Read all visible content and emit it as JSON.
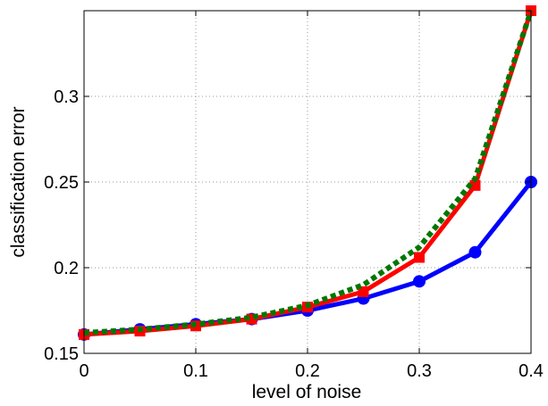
{
  "chart_data": {
    "type": "line",
    "title": "",
    "xlabel": "level of noise",
    "ylabel": "classification error",
    "xlim": [
      0,
      0.4
    ],
    "ylim": [
      0.15,
      0.35
    ],
    "xticks": [
      0,
      0.1,
      0.2,
      0.3,
      0.4
    ],
    "xtick_labels": [
      "0",
      "0.1",
      "0.2",
      "0.3",
      "0.4"
    ],
    "yticks": [
      0.15,
      0.2,
      0.25,
      0.3
    ],
    "ytick_labels": [
      "0.15",
      "0.2",
      "0.25",
      "0.3"
    ],
    "grid": true,
    "legend": "none",
    "x": [
      0,
      0.05,
      0.1,
      0.15,
      0.2,
      0.25,
      0.3,
      0.35,
      0.4
    ],
    "series": [
      {
        "color": "#0000ff",
        "line_style": "solid",
        "marker": "circle",
        "values": [
          0.161,
          0.164,
          0.167,
          0.17,
          0.175,
          0.182,
          0.192,
          0.209,
          0.25
        ]
      },
      {
        "color": "#ff0000",
        "line_style": "solid",
        "marker": "square",
        "values": [
          0.161,
          0.163,
          0.166,
          0.17,
          0.177,
          0.186,
          0.206,
          0.248,
          0.35
        ]
      },
      {
        "color": "#007700",
        "line_style": "dotted",
        "marker": "none",
        "values": [
          0.162,
          0.164,
          0.167,
          0.171,
          0.178,
          0.19,
          0.212,
          0.252,
          0.35
        ]
      }
    ]
  }
}
